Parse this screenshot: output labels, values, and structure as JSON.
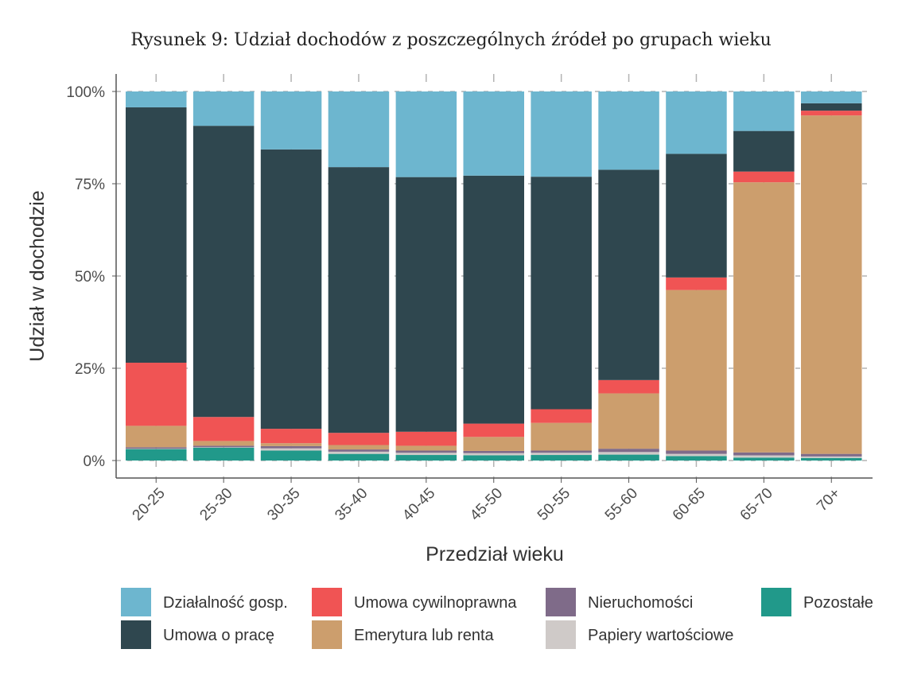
{
  "chart_data": {
    "type": "bar",
    "stacked": true,
    "title": "Rysunek 9: Udział dochodów z poszczególnych źródeł po grupach wieku",
    "xlabel": "Przedział wieku",
    "ylabel": "Udział w dochodzie",
    "ylim": [
      0,
      1
    ],
    "yticks": [
      0,
      0.25,
      0.5,
      0.75,
      1
    ],
    "ytick_labels": [
      "0%",
      "25%",
      "50%",
      "75%",
      "100%"
    ],
    "categories": [
      "20-25",
      "25-30",
      "30-35",
      "35-40",
      "40-45",
      "45-50",
      "50-55",
      "55-60",
      "60-65",
      "65-70",
      "70+"
    ],
    "series": [
      {
        "name": "Pozostałe",
        "color": "#21998a",
        "values": [
          0.031,
          0.035,
          0.027,
          0.018,
          0.015,
          0.014,
          0.015,
          0.016,
          0.012,
          0.008,
          0.007
        ]
      },
      {
        "name": "Papiery wartościowe",
        "color": "#cfcac8",
        "values": [
          0.001,
          0.001,
          0.006,
          0.006,
          0.006,
          0.006,
          0.006,
          0.007,
          0.006,
          0.006,
          0.004
        ]
      },
      {
        "name": "Nieruchomości",
        "color": "#7f6b89",
        "values": [
          0.004,
          0.004,
          0.006,
          0.006,
          0.006,
          0.006,
          0.006,
          0.009,
          0.009,
          0.008,
          0.007
        ]
      },
      {
        "name": "Emerytura lub renta",
        "color": "#cc9e6d",
        "values": [
          0.058,
          0.013,
          0.008,
          0.012,
          0.013,
          0.038,
          0.075,
          0.15,
          0.435,
          0.732,
          0.917
        ]
      },
      {
        "name": "Umowa cywilnoprawna",
        "color": "#f05454",
        "values": [
          0.171,
          0.065,
          0.039,
          0.033,
          0.038,
          0.036,
          0.037,
          0.036,
          0.034,
          0.029,
          0.013
        ]
      },
      {
        "name": "Umowa o pracę",
        "color": "#2f474f",
        "values": [
          0.692,
          0.789,
          0.757,
          0.72,
          0.69,
          0.672,
          0.63,
          0.57,
          0.335,
          0.11,
          0.02
        ]
      },
      {
        "name": "Działalność gosp.",
        "color": "#6db6cf",
        "values": [
          0.043,
          0.093,
          0.157,
          0.205,
          0.232,
          0.228,
          0.231,
          0.212,
          0.169,
          0.107,
          0.032
        ]
      }
    ],
    "legend": {
      "position": "bottom",
      "items": [
        {
          "label": "Działalność gosp.",
          "color": "#6db6cf"
        },
        {
          "label": "Umowa o pracę",
          "color": "#2f474f"
        },
        {
          "label": "Umowa cywilnoprawna",
          "color": "#f05454"
        },
        {
          "label": "Emerytura lub renta",
          "color": "#cc9e6d"
        },
        {
          "label": "Nieruchomości",
          "color": "#7f6b89"
        },
        {
          "label": "Papiery wartościowe",
          "color": "#cfcac8"
        },
        {
          "label": "Pozostałe",
          "color": "#21998a"
        }
      ]
    },
    "grid": true
  }
}
